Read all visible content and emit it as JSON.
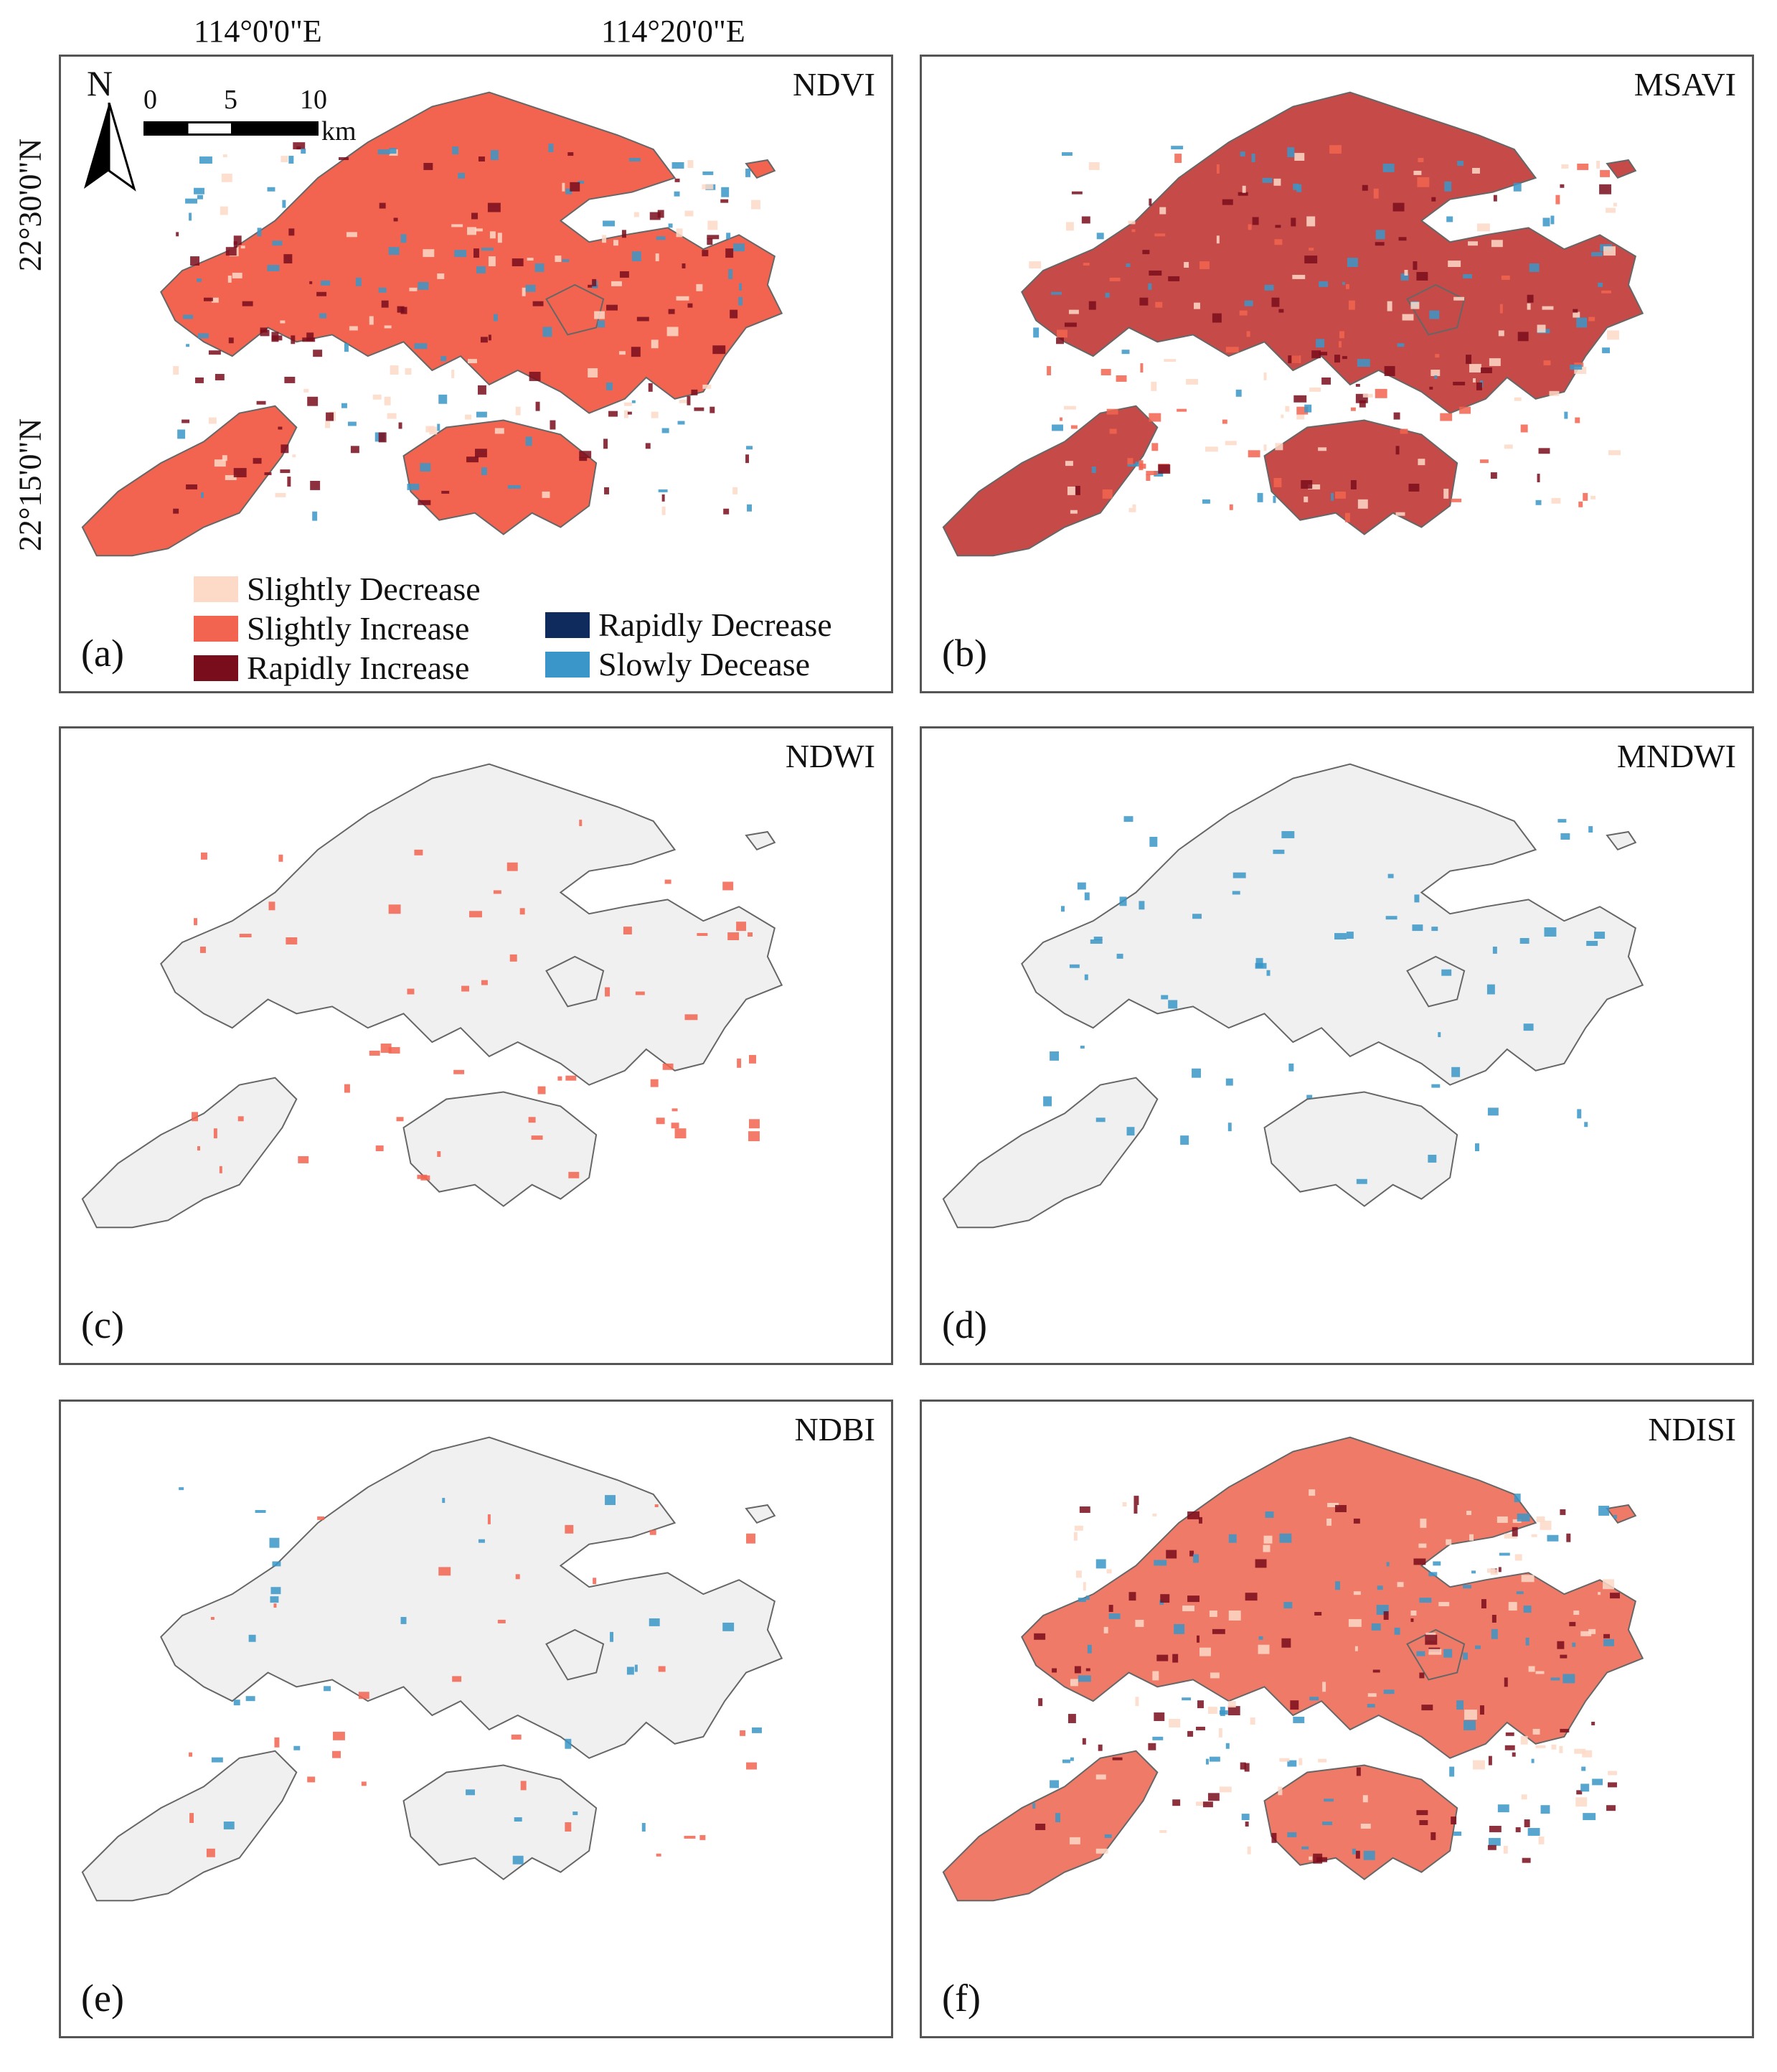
{
  "coordinates": {
    "lon_left": "114°0'0\"E",
    "lon_right": "114°20'0\"E",
    "lat_top": "22°30'0\"N",
    "lat_bottom": "22°15'0\"N"
  },
  "scale": {
    "ticks": [
      "0",
      "5",
      "10"
    ],
    "unit": "km"
  },
  "north_arrow": "N",
  "legend": [
    {
      "label": "Slightly Decrease",
      "color": "#fdd9c8"
    },
    {
      "label": "Slightly Increase",
      "color": "#f26450"
    },
    {
      "label": "Rapidly Increase",
      "color": "#7a0d1c"
    },
    {
      "label": "Rapidly Decrease",
      "color": "#0f2a5c"
    },
    {
      "label": "Slowly Decease",
      "color": "#3a96c8"
    }
  ],
  "panels": [
    {
      "id": "a",
      "index": "NDVI",
      "label": "(a)"
    },
    {
      "id": "b",
      "index": "MSAVI",
      "label": "(b)"
    },
    {
      "id": "c",
      "index": "NDWI",
      "label": "(c)"
    },
    {
      "id": "d",
      "index": "MNDWI",
      "label": "(d)"
    },
    {
      "id": "e",
      "index": "NDBI",
      "label": "(e)"
    },
    {
      "id": "f",
      "index": "NDISI",
      "label": "(f)"
    }
  ],
  "colors": {
    "slightly_decrease": "#fdd9c8",
    "slightly_increase": "#f26450",
    "rapidly_increase": "#7a0d1c",
    "rapidly_decrease": "#0f2a5c",
    "slowly_decrease": "#3a96c8",
    "no_change": "#f0f0f0",
    "outline": "#666666"
  }
}
